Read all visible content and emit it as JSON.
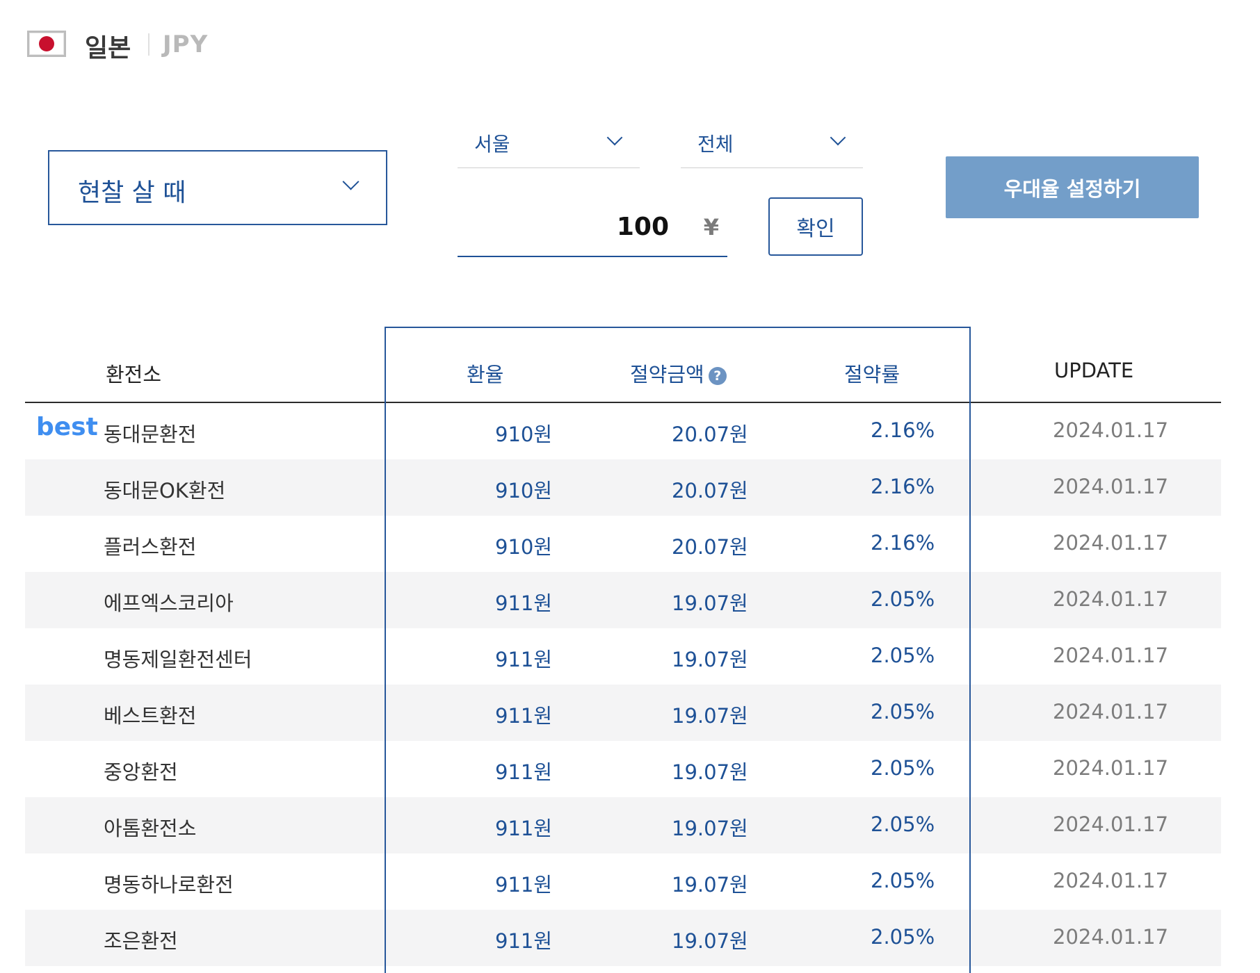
{
  "header": {
    "country": "일본",
    "currency_code": "JPY"
  },
  "controls": {
    "mode_label": "현찰 살 때",
    "region": "서울",
    "branch": "전체",
    "amount": "100",
    "currency_symbol": "¥",
    "confirm_label": "확인",
    "preferential_label": "우대율 설정하기"
  },
  "table": {
    "headers": {
      "exchanger": "환전소",
      "rate": "환율",
      "saving": "절약금액",
      "saving_rate": "절약률",
      "update": "UPDATE"
    },
    "best_label": "best",
    "rows": [
      {
        "name": "동대문환전",
        "rate": "910원",
        "saving": "20.07원",
        "saving_rate": "2.16%",
        "update": "2024.01.17"
      },
      {
        "name": "동대문OK환전",
        "rate": "910원",
        "saving": "20.07원",
        "saving_rate": "2.16%",
        "update": "2024.01.17"
      },
      {
        "name": "플러스환전",
        "rate": "910원",
        "saving": "20.07원",
        "saving_rate": "2.16%",
        "update": "2024.01.17"
      },
      {
        "name": "에프엑스코리아",
        "rate": "911원",
        "saving": "19.07원",
        "saving_rate": "2.05%",
        "update": "2024.01.17"
      },
      {
        "name": "명동제일환전센터",
        "rate": "911원",
        "saving": "19.07원",
        "saving_rate": "2.05%",
        "update": "2024.01.17"
      },
      {
        "name": "베스트환전",
        "rate": "911원",
        "saving": "19.07원",
        "saving_rate": "2.05%",
        "update": "2024.01.17"
      },
      {
        "name": "중앙환전",
        "rate": "911원",
        "saving": "19.07원",
        "saving_rate": "2.05%",
        "update": "2024.01.17"
      },
      {
        "name": "아톰환전소",
        "rate": "911원",
        "saving": "19.07원",
        "saving_rate": "2.05%",
        "update": "2024.01.17"
      },
      {
        "name": "명동하나로환전",
        "rate": "911원",
        "saving": "19.07원",
        "saving_rate": "2.05%",
        "update": "2024.01.17"
      },
      {
        "name": "조은환전",
        "rate": "911원",
        "saving": "19.07원",
        "saving_rate": "2.05%",
        "update": "2024.01.17"
      }
    ]
  },
  "colors": {
    "primary": "#1e5196",
    "best": "#3f8ef0",
    "button_bg": "#739ec9",
    "flag_red": "#c8102e",
    "row_alt": "#f4f4f5"
  }
}
